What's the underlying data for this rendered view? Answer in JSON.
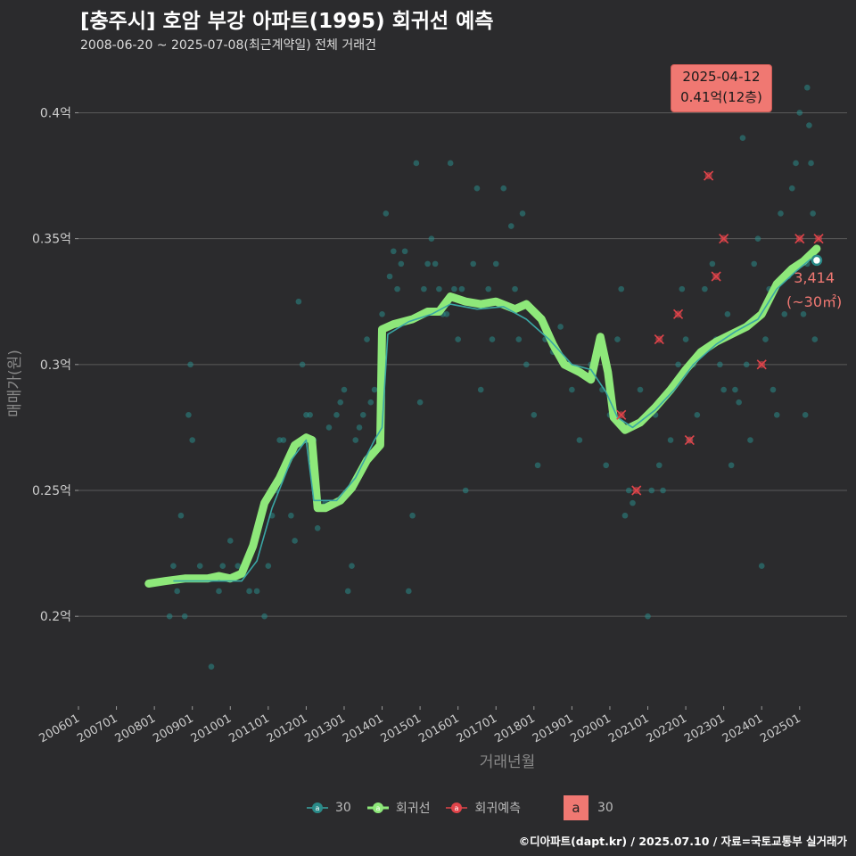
{
  "header": {
    "title": "[충주시] 호암 부강 아파트(1995) 회귀선 예측",
    "subtitle": "2008-06-20 ~ 2025-07-08(최근계약일) 전체 거래건"
  },
  "footer": {
    "credit": "©디아파트(dapt.kr) / 2025.07.10 / 자료=국토교통부 실거래가"
  },
  "callout": {
    "date": "2025-04-12",
    "value": "0.41억(12층)"
  },
  "last_label": {
    "value": "3,414",
    "area": "(~30㎡)"
  },
  "legend": {
    "series_30": "30",
    "regression": "회귀선",
    "prediction": "회귀예측",
    "box_letter": "a",
    "box_label": "30"
  },
  "colors": {
    "background": "#2b2b2d",
    "grid": "#5a5a5a",
    "points": "#2a8a88",
    "regression": "#8ee87a",
    "trend": "#3aa6a4",
    "prediction": "#e0444a",
    "accent": "#f07872"
  },
  "chart_data": {
    "type": "scatter",
    "title": "[충주시] 호암 부강 아파트(1995) 회귀선 예측",
    "xlabel": "거래년월",
    "ylabel": "매매가(원)",
    "xlim": [
      2006.0,
      2026.25
    ],
    "ylim": [
      0.165,
      0.42
    ],
    "y_ticks": [
      0.2,
      0.25,
      0.3,
      0.35,
      0.4
    ],
    "y_tick_labels": [
      "0.2억",
      "0.25억",
      "0.3억",
      "0.35억",
      "0.4억"
    ],
    "x_ticks": [
      2006,
      2007,
      2008,
      2009,
      2010,
      2011,
      2012,
      2013,
      2014,
      2015,
      2016,
      2017,
      2018,
      2019,
      2020,
      2021,
      2022,
      2023,
      2024,
      2025
    ],
    "x_tick_labels": [
      "200601",
      "200701",
      "200801",
      "200901",
      "201001",
      "201101",
      "201201",
      "201301",
      "201401",
      "201501",
      "201601",
      "201701",
      "201801",
      "201901",
      "202001",
      "202101",
      "202201",
      "202301",
      "202401",
      "202501"
    ],
    "grid": true,
    "legend_position": "bottom",
    "regression_line": [
      [
        2007.85,
        0.213
      ],
      [
        2008.3,
        0.214
      ],
      [
        2008.8,
        0.215
      ],
      [
        2009.4,
        0.215
      ],
      [
        2009.7,
        0.216
      ],
      [
        2010.0,
        0.215
      ],
      [
        2010.3,
        0.217
      ],
      [
        2010.6,
        0.228
      ],
      [
        2010.9,
        0.245
      ],
      [
        2011.3,
        0.255
      ],
      [
        2011.7,
        0.268
      ],
      [
        2012.0,
        0.271
      ],
      [
        2012.15,
        0.27
      ],
      [
        2012.3,
        0.243
      ],
      [
        2012.5,
        0.243
      ],
      [
        2012.9,
        0.246
      ],
      [
        2013.2,
        0.251
      ],
      [
        2013.6,
        0.262
      ],
      [
        2013.95,
        0.268
      ],
      [
        2014.0,
        0.314
      ],
      [
        2014.3,
        0.316
      ],
      [
        2014.8,
        0.318
      ],
      [
        2015.2,
        0.321
      ],
      [
        2015.5,
        0.321
      ],
      [
        2015.8,
        0.327
      ],
      [
        2016.2,
        0.325
      ],
      [
        2016.6,
        0.324
      ],
      [
        2017.0,
        0.325
      ],
      [
        2017.5,
        0.322
      ],
      [
        2017.8,
        0.324
      ],
      [
        2018.2,
        0.318
      ],
      [
        2018.5,
        0.308
      ],
      [
        2018.8,
        0.3
      ],
      [
        2019.2,
        0.297
      ],
      [
        2019.5,
        0.294
      ],
      [
        2019.75,
        0.311
      ],
      [
        2019.95,
        0.297
      ],
      [
        2020.1,
        0.279
      ],
      [
        2020.4,
        0.274
      ],
      [
        2020.8,
        0.277
      ],
      [
        2021.2,
        0.283
      ],
      [
        2021.6,
        0.29
      ],
      [
        2022.0,
        0.298
      ],
      [
        2022.4,
        0.305
      ],
      [
        2022.8,
        0.309
      ],
      [
        2023.2,
        0.312
      ],
      [
        2023.6,
        0.315
      ],
      [
        2024.0,
        0.32
      ],
      [
        2024.4,
        0.332
      ],
      [
        2024.8,
        0.338
      ],
      [
        2025.1,
        0.341
      ],
      [
        2025.45,
        0.346
      ]
    ],
    "trend_line": [
      [
        2008.5,
        0.214
      ],
      [
        2009.5,
        0.214
      ],
      [
        2010.3,
        0.214
      ],
      [
        2010.7,
        0.222
      ],
      [
        2011.1,
        0.243
      ],
      [
        2011.6,
        0.262
      ],
      [
        2012.0,
        0.27
      ],
      [
        2012.2,
        0.246
      ],
      [
        2012.8,
        0.246
      ],
      [
        2013.3,
        0.255
      ],
      [
        2013.8,
        0.27
      ],
      [
        2014.0,
        0.275
      ],
      [
        2014.15,
        0.312
      ],
      [
        2014.7,
        0.317
      ],
      [
        2015.3,
        0.32
      ],
      [
        2015.8,
        0.324
      ],
      [
        2016.5,
        0.322
      ],
      [
        2017.2,
        0.323
      ],
      [
        2017.8,
        0.318
      ],
      [
        2018.4,
        0.31
      ],
      [
        2019.0,
        0.3
      ],
      [
        2019.5,
        0.298
      ],
      [
        2019.9,
        0.289
      ],
      [
        2020.2,
        0.279
      ],
      [
        2020.6,
        0.275
      ],
      [
        2021.2,
        0.282
      ],
      [
        2021.7,
        0.29
      ],
      [
        2022.2,
        0.3
      ],
      [
        2022.8,
        0.308
      ],
      [
        2023.3,
        0.313
      ],
      [
        2023.9,
        0.318
      ],
      [
        2024.4,
        0.33
      ],
      [
        2024.9,
        0.337
      ],
      [
        2025.3,
        0.342
      ]
    ],
    "predictions": [
      [
        2020.3,
        0.28
      ],
      [
        2020.7,
        0.25
      ],
      [
        2021.3,
        0.31
      ],
      [
        2021.8,
        0.32
      ],
      [
        2022.1,
        0.27
      ],
      [
        2022.6,
        0.375
      ],
      [
        2022.8,
        0.335
      ],
      [
        2023.0,
        0.35
      ],
      [
        2024.0,
        0.3
      ],
      [
        2025.0,
        0.35
      ],
      [
        2025.5,
        0.35
      ]
    ],
    "points": [
      [
        2008.4,
        0.2
      ],
      [
        2008.5,
        0.22
      ],
      [
        2008.6,
        0.21
      ],
      [
        2008.7,
        0.24
      ],
      [
        2008.8,
        0.2
      ],
      [
        2008.9,
        0.28
      ],
      [
        2008.95,
        0.3
      ],
      [
        2009.0,
        0.27
      ],
      [
        2009.2,
        0.22
      ],
      [
        2009.5,
        0.18
      ],
      [
        2009.7,
        0.21
      ],
      [
        2009.8,
        0.22
      ],
      [
        2010.0,
        0.23
      ],
      [
        2010.2,
        0.22
      ],
      [
        2010.5,
        0.21
      ],
      [
        2010.7,
        0.21
      ],
      [
        2010.9,
        0.2
      ],
      [
        2011.0,
        0.22
      ],
      [
        2011.1,
        0.24
      ],
      [
        2011.2,
        0.25
      ],
      [
        2011.3,
        0.27
      ],
      [
        2011.4,
        0.27
      ],
      [
        2011.5,
        0.26
      ],
      [
        2011.6,
        0.24
      ],
      [
        2011.7,
        0.23
      ],
      [
        2011.8,
        0.325
      ],
      [
        2011.9,
        0.3
      ],
      [
        2012.0,
        0.28
      ],
      [
        2012.1,
        0.28
      ],
      [
        2012.2,
        0.27
      ],
      [
        2012.3,
        0.235
      ],
      [
        2012.5,
        0.245
      ],
      [
        2012.6,
        0.275
      ],
      [
        2012.8,
        0.28
      ],
      [
        2012.9,
        0.285
      ],
      [
        2013.0,
        0.29
      ],
      [
        2013.1,
        0.21
      ],
      [
        2013.2,
        0.22
      ],
      [
        2013.3,
        0.27
      ],
      [
        2013.4,
        0.275
      ],
      [
        2013.5,
        0.28
      ],
      [
        2013.6,
        0.31
      ],
      [
        2013.7,
        0.285
      ],
      [
        2013.8,
        0.29
      ],
      [
        2014.0,
        0.32
      ],
      [
        2014.1,
        0.36
      ],
      [
        2014.2,
        0.335
      ],
      [
        2014.3,
        0.345
      ],
      [
        2014.4,
        0.33
      ],
      [
        2014.5,
        0.34
      ],
      [
        2014.6,
        0.345
      ],
      [
        2014.7,
        0.21
      ],
      [
        2014.8,
        0.24
      ],
      [
        2014.9,
        0.38
      ],
      [
        2015.0,
        0.285
      ],
      [
        2015.1,
        0.33
      ],
      [
        2015.2,
        0.34
      ],
      [
        2015.3,
        0.35
      ],
      [
        2015.4,
        0.34
      ],
      [
        2015.5,
        0.33
      ],
      [
        2015.6,
        0.32
      ],
      [
        2015.7,
        0.32
      ],
      [
        2015.8,
        0.38
      ],
      [
        2015.9,
        0.33
      ],
      [
        2016.0,
        0.31
      ],
      [
        2016.1,
        0.33
      ],
      [
        2016.2,
        0.25
      ],
      [
        2016.4,
        0.34
      ],
      [
        2016.5,
        0.37
      ],
      [
        2016.6,
        0.29
      ],
      [
        2016.8,
        0.33
      ],
      [
        2016.9,
        0.31
      ],
      [
        2017.0,
        0.34
      ],
      [
        2017.2,
        0.37
      ],
      [
        2017.4,
        0.355
      ],
      [
        2017.5,
        0.33
      ],
      [
        2017.6,
        0.31
      ],
      [
        2017.7,
        0.36
      ],
      [
        2017.8,
        0.3
      ],
      [
        2018.0,
        0.28
      ],
      [
        2018.1,
        0.26
      ],
      [
        2018.3,
        0.31
      ],
      [
        2018.5,
        0.305
      ],
      [
        2018.7,
        0.315
      ],
      [
        2018.9,
        0.3
      ],
      [
        2019.0,
        0.29
      ],
      [
        2019.2,
        0.27
      ],
      [
        2019.5,
        0.3
      ],
      [
        2019.8,
        0.29
      ],
      [
        2019.9,
        0.26
      ],
      [
        2020.0,
        0.28
      ],
      [
        2020.2,
        0.31
      ],
      [
        2020.3,
        0.33
      ],
      [
        2020.4,
        0.24
      ],
      [
        2020.5,
        0.25
      ],
      [
        2020.6,
        0.245
      ],
      [
        2020.8,
        0.29
      ],
      [
        2021.0,
        0.2
      ],
      [
        2021.1,
        0.25
      ],
      [
        2021.2,
        0.28
      ],
      [
        2021.3,
        0.26
      ],
      [
        2021.4,
        0.25
      ],
      [
        2021.6,
        0.27
      ],
      [
        2021.8,
        0.3
      ],
      [
        2021.9,
        0.33
      ],
      [
        2022.0,
        0.31
      ],
      [
        2022.1,
        0.27
      ],
      [
        2022.2,
        0.3
      ],
      [
        2022.3,
        0.28
      ],
      [
        2022.5,
        0.33
      ],
      [
        2022.7,
        0.34
      ],
      [
        2022.8,
        0.31
      ],
      [
        2022.9,
        0.3
      ],
      [
        2023.0,
        0.29
      ],
      [
        2023.1,
        0.32
      ],
      [
        2023.2,
        0.26
      ],
      [
        2023.3,
        0.29
      ],
      [
        2023.4,
        0.285
      ],
      [
        2023.5,
        0.39
      ],
      [
        2023.6,
        0.3
      ],
      [
        2023.7,
        0.27
      ],
      [
        2023.8,
        0.34
      ],
      [
        2023.9,
        0.35
      ],
      [
        2024.0,
        0.22
      ],
      [
        2024.1,
        0.31
      ],
      [
        2024.2,
        0.33
      ],
      [
        2024.3,
        0.29
      ],
      [
        2024.4,
        0.28
      ],
      [
        2024.5,
        0.36
      ],
      [
        2024.6,
        0.32
      ],
      [
        2024.7,
        0.335
      ],
      [
        2024.8,
        0.37
      ],
      [
        2024.9,
        0.38
      ],
      [
        2025.0,
        0.4
      ],
      [
        2025.1,
        0.32
      ],
      [
        2025.2,
        0.41
      ],
      [
        2025.25,
        0.395
      ],
      [
        2025.3,
        0.38
      ],
      [
        2025.35,
        0.36
      ],
      [
        2025.4,
        0.31
      ],
      [
        2025.15,
        0.28
      ],
      [
        2025.2,
        0.34
      ]
    ],
    "highlight_last": [
      2025.45,
      0.3414
    ]
  }
}
